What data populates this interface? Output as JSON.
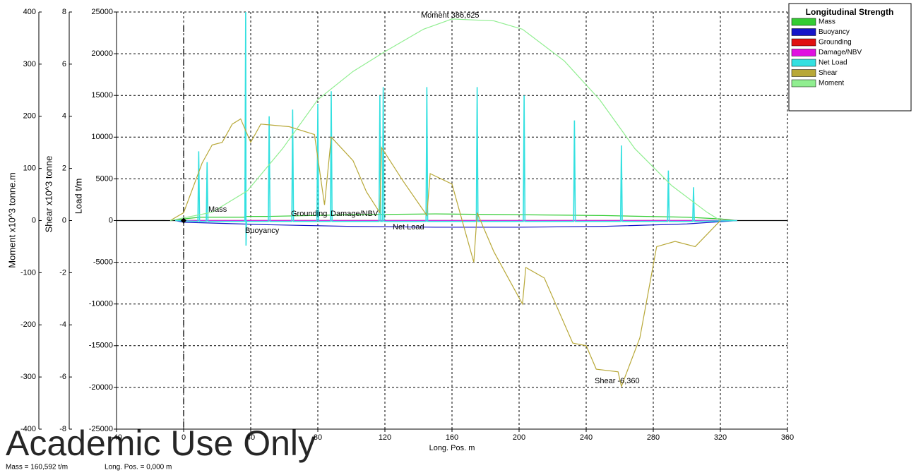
{
  "chart_data": {
    "type": "line",
    "legend_title": "Longitudinal Strength",
    "legend": "right",
    "grid": true,
    "x_label": "Long. Pos.  m",
    "y_label": "Load  t/m",
    "y2_label": "Shear  x10^3 tonne",
    "y3_label": "Moment  x10^3 tonne.m",
    "xlim": [
      -40,
      360
    ],
    "xticks": [
      -40,
      0,
      40,
      80,
      120,
      160,
      200,
      240,
      280,
      320,
      360
    ],
    "ylim": [
      -25000,
      25000
    ],
    "yticks": [
      -25000,
      -20000,
      -15000,
      -10000,
      -5000,
      0,
      5000,
      10000,
      15000,
      20000,
      25000
    ],
    "y2lim": [
      -8,
      8
    ],
    "y2ticks": [
      -8,
      -6,
      -4,
      -2,
      0,
      2,
      4,
      6,
      8
    ],
    "y3lim": [
      -400,
      400
    ],
    "y3ticks": [
      -400,
      -300,
      -200,
      -100,
      0,
      100,
      200,
      300,
      400
    ],
    "series": [
      {
        "name": "Mass",
        "color": "#33cc33",
        "axis": "y",
        "x": [
          -5,
          0,
          10,
          36,
          37,
          50,
          100,
          150,
          200,
          250,
          300,
          320,
          330
        ],
        "values": [
          0,
          200,
          400,
          400,
          500,
          500,
          700,
          800,
          700,
          600,
          400,
          200,
          0
        ]
      },
      {
        "name": "Buoyancy",
        "color": "#1414c8",
        "axis": "y",
        "x": [
          -5,
          0,
          50,
          100,
          150,
          200,
          250,
          300,
          330
        ],
        "values": [
          0,
          -200,
          -500,
          -700,
          -800,
          -800,
          -700,
          -400,
          0
        ]
      },
      {
        "name": "Grounding",
        "color": "#e01010",
        "axis": "y",
        "x": [
          -5,
          330
        ],
        "values": [
          0,
          0
        ]
      },
      {
        "name": "Damage/NBV",
        "color": "#e010e0",
        "axis": "y",
        "x": [
          -5,
          330
        ],
        "values": [
          0,
          0
        ]
      },
      {
        "name": "Net Load",
        "color": "#33e0e0",
        "axis": "y",
        "x": [
          -5,
          8.5,
          9,
          9.5,
          13.5,
          14,
          14.5,
          36.5,
          37,
          37.2,
          37.5,
          50.5,
          51,
          51.5,
          64.5,
          65,
          65.5,
          79.5,
          80,
          80.5,
          87.5,
          88,
          88.5,
          116.5,
          117,
          117.5,
          118.5,
          119,
          119.5,
          144.5,
          145,
          145.5,
          174.5,
          175,
          175.5,
          202.5,
          203,
          203.5,
          232.5,
          233,
          233.5,
          260.5,
          261,
          261.5,
          288.5,
          289,
          289.5,
          303.5,
          304,
          304.5,
          330
        ],
        "values": [
          0,
          -100,
          8300,
          -100,
          -100,
          7000,
          -100,
          -100,
          25000,
          -3000,
          -100,
          -100,
          12500,
          -100,
          -100,
          13300,
          -100,
          -100,
          14000,
          -100,
          -100,
          15500,
          -100,
          -100,
          15000,
          -100,
          -100,
          16000,
          -100,
          -100,
          16000,
          -100,
          -100,
          16000,
          -100,
          -100,
          15000,
          -100,
          -100,
          12000,
          -100,
          -100,
          9000,
          -100,
          -100,
          6000,
          -100,
          -100,
          4000,
          -100,
          0
        ]
      },
      {
        "name": "Shear",
        "color": "#b8a838",
        "axis": "y2",
        "x": [
          -8,
          0,
          11,
          17,
          23,
          29,
          34,
          40,
          46,
          63,
          78,
          84,
          88,
          101,
          109,
          117,
          118,
          131,
          145,
          147,
          160,
          173,
          175,
          185,
          202,
          204,
          215,
          232,
          240,
          246,
          259,
          261,
          272,
          282,
          293,
          305,
          320
        ],
        "values": [
          0,
          0.3,
          2.2,
          2.9,
          3.0,
          3.7,
          3.9,
          3.0,
          3.7,
          3.6,
          3.3,
          0.6,
          3.2,
          2.3,
          1.1,
          0.3,
          2.8,
          1.5,
          0.2,
          1.8,
          1.4,
          -1.6,
          0.3,
          -1.2,
          -3.2,
          -1.8,
          -2.2,
          -4.7,
          -4.8,
          -5.7,
          -5.8,
          -6.36,
          -4.5,
          -1.0,
          -0.8,
          -1.0,
          0
        ]
      },
      {
        "name": "Moment",
        "color": "#90ee90",
        "axis": "y3",
        "x": [
          -8,
          17,
          38,
          59,
          80,
          101,
          120,
          143,
          160,
          185,
          202,
          227,
          248,
          269,
          291,
          312,
          320
        ],
        "values": [
          0,
          16,
          57,
          138,
          232,
          286,
          324,
          367,
          386.6,
          383,
          367,
          306,
          232,
          138,
          67,
          16,
          0
        ]
      }
    ],
    "annotations": [
      {
        "text": "Moment 386,625"
      },
      {
        "text": "Shear -6,360"
      }
    ],
    "watermark": "Academic Use Only",
    "status": [
      "Mass = 160,592 t/m",
      "Long. Pos. =  0,000 m"
    ]
  }
}
